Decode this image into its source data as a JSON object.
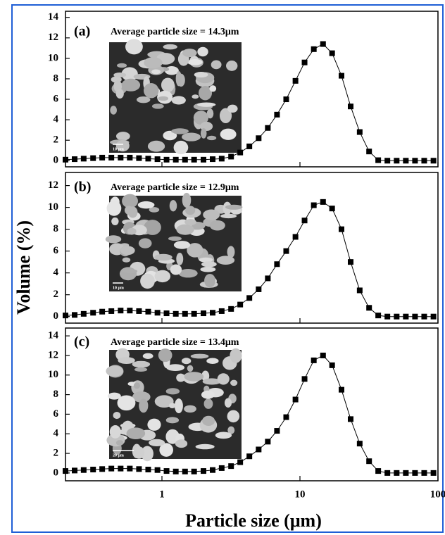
{
  "xlabel": "Particle size (μm)",
  "ylabel": "Volume (%)",
  "chart_data": [
    {
      "type": "line",
      "label": "(a)",
      "annotation": "Average particle size = 14.3μm",
      "scale_bar": "10 μm",
      "log_x": true,
      "color": "#000000",
      "marker": "square",
      "xlim": [
        0.2,
        100
      ],
      "xticks": [
        1,
        10,
        100
      ],
      "ylim": [
        -0.6,
        14.6
      ],
      "yticks": [
        0,
        2,
        4,
        6,
        8,
        10,
        12,
        14
      ],
      "x": [
        0.2,
        0.233,
        0.271,
        0.317,
        0.369,
        0.43,
        0.502,
        0.585,
        0.682,
        0.795,
        0.928,
        1.08,
        1.26,
        1.47,
        1.71,
        2.0,
        2.33,
        2.71,
        3.17,
        3.69,
        4.3,
        5.02,
        5.85,
        6.82,
        7.95,
        9.28,
        10.8,
        12.6,
        14.7,
        17.1,
        20.0,
        23.3,
        27.1,
        31.7,
        36.9,
        43.0,
        50.2,
        58.5,
        68.2,
        79.5,
        92.8
      ],
      "values": [
        0.1,
        0.15,
        0.2,
        0.25,
        0.3,
        0.3,
        0.3,
        0.3,
        0.25,
        0.2,
        0.15,
        0.1,
        0.1,
        0.1,
        0.1,
        0.1,
        0.15,
        0.2,
        0.4,
        0.8,
        1.4,
        2.2,
        3.2,
        4.5,
        6.0,
        7.8,
        9.6,
        10.9,
        11.4,
        10.5,
        8.3,
        5.3,
        2.8,
        0.9,
        0.05,
        0,
        0,
        0,
        0,
        0,
        0
      ]
    },
    {
      "type": "line",
      "label": "(b)",
      "annotation": "Average particle size = 12.9μm",
      "scale_bar": "10 μm",
      "log_x": true,
      "color": "#000000",
      "marker": "square",
      "xlim": [
        0.2,
        100
      ],
      "xticks": [
        1,
        10,
        100
      ],
      "ylim": [
        -0.6,
        13.2
      ],
      "yticks": [
        0,
        2,
        4,
        6,
        8,
        10,
        12
      ],
      "x": [
        0.2,
        0.233,
        0.271,
        0.317,
        0.369,
        0.43,
        0.502,
        0.585,
        0.682,
        0.795,
        0.928,
        1.08,
        1.26,
        1.47,
        1.71,
        2.0,
        2.33,
        2.71,
        3.17,
        3.69,
        4.3,
        5.02,
        5.85,
        6.82,
        7.95,
        9.28,
        10.8,
        12.6,
        14.7,
        17.1,
        20.0,
        23.3,
        27.1,
        31.7,
        36.9,
        43.0,
        50.2,
        58.5,
        68.2,
        79.5,
        92.8
      ],
      "values": [
        0.1,
        0.15,
        0.25,
        0.35,
        0.45,
        0.5,
        0.55,
        0.55,
        0.5,
        0.45,
        0.35,
        0.3,
        0.25,
        0.25,
        0.25,
        0.3,
        0.35,
        0.5,
        0.7,
        1.1,
        1.7,
        2.5,
        3.5,
        4.8,
        6.0,
        7.3,
        8.8,
        10.2,
        10.5,
        9.9,
        8.0,
        5.0,
        2.4,
        0.8,
        0.1,
        0,
        0,
        0,
        0,
        0,
        0
      ]
    },
    {
      "type": "line",
      "label": "(c)",
      "annotation": "Average particle size = 13.4μm",
      "scale_bar": "20 μm",
      "log_x": true,
      "color": "#000000",
      "marker": "square",
      "xlim": [
        0.2,
        100
      ],
      "xticks": [
        1,
        10,
        100
      ],
      "ylim": [
        -0.8,
        14.8
      ],
      "yticks": [
        0,
        2,
        4,
        6,
        8,
        10,
        12,
        14
      ],
      "x": [
        0.2,
        0.233,
        0.271,
        0.317,
        0.369,
        0.43,
        0.502,
        0.585,
        0.682,
        0.795,
        0.928,
        1.08,
        1.26,
        1.47,
        1.71,
        2.0,
        2.33,
        2.71,
        3.17,
        3.69,
        4.3,
        5.02,
        5.85,
        6.82,
        7.95,
        9.28,
        10.8,
        12.6,
        14.7,
        17.1,
        20.0,
        23.3,
        27.1,
        31.7,
        36.9,
        43.0,
        50.2,
        58.5,
        68.2,
        79.5,
        92.8
      ],
      "values": [
        0.2,
        0.25,
        0.3,
        0.35,
        0.4,
        0.45,
        0.45,
        0.45,
        0.4,
        0.35,
        0.3,
        0.2,
        0.15,
        0.15,
        0.15,
        0.2,
        0.3,
        0.5,
        0.7,
        1.1,
        1.7,
        2.4,
        3.2,
        4.3,
        5.7,
        7.5,
        9.6,
        11.5,
        12.0,
        11.0,
        8.5,
        5.5,
        3.0,
        1.2,
        0.2,
        0,
        0,
        0,
        0,
        0,
        0
      ]
    }
  ]
}
